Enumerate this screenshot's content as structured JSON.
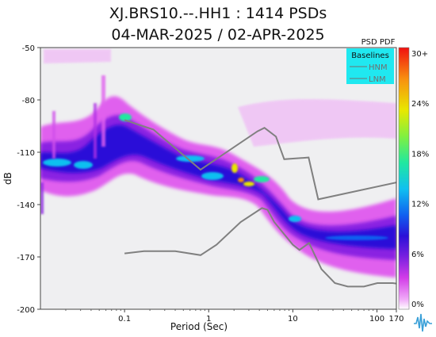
{
  "title": "XJ.BRS10.--.HH1 : 1414 PSDs",
  "subtitle": "04-MAR-2025 / 02-APR-2025",
  "chart_data": {
    "type": "heatmap",
    "xlabel": "Period (Sec)",
    "ylabel": "dB",
    "x_scale": "log",
    "xlim": [
      0.01,
      170
    ],
    "ylim": [
      -200,
      -50
    ],
    "x_ticks": [
      "0.1",
      "1",
      "10",
      "100",
      "170"
    ],
    "y_ticks": [
      "-50",
      "-80",
      "-110",
      "-140",
      "-170",
      "-200"
    ],
    "colorbar": {
      "title": "PSD PDF",
      "ticks": [
        "30+",
        "24%",
        "18%",
        "12%",
        "6%",
        "0%"
      ],
      "colors": [
        "#ffffff",
        "#f0a8f8",
        "#d23ce8",
        "#7a20e0",
        "#2a10d8",
        "#1060f0",
        "#10c0f0",
        "#20e8a0",
        "#80f040",
        "#e8e800",
        "#f89010",
        "#f01010"
      ]
    },
    "legend": {
      "title": "Baselines",
      "items": [
        "HNM",
        "LNM"
      ],
      "placement": "top-right"
    },
    "series": [
      {
        "name": "HNM",
        "x": [
          0.1,
          0.22,
          0.8,
          3.8,
          4.6,
          6.3,
          7.9,
          15.4,
          20,
          354.8
        ],
        "y": [
          -91.5,
          -97,
          -120,
          -98,
          -96,
          -101,
          -114,
          -113,
          -137,
          -124
        ]
      },
      {
        "name": "LNM",
        "x": [
          0.1,
          0.17,
          0.4,
          0.8,
          1.24,
          2.4,
          4.3,
          5,
          6,
          10,
          12,
          15.6,
          21.9,
          31.6,
          45,
          70,
          101,
          154,
          328
        ],
        "y": [
          -168,
          -166.7,
          -166.7,
          -169,
          -163,
          -150,
          -142,
          -143,
          -150,
          -163,
          -166,
          -162,
          -177,
          -185,
          -187,
          -187,
          -185,
          -185,
          -187
        ]
      }
    ]
  }
}
